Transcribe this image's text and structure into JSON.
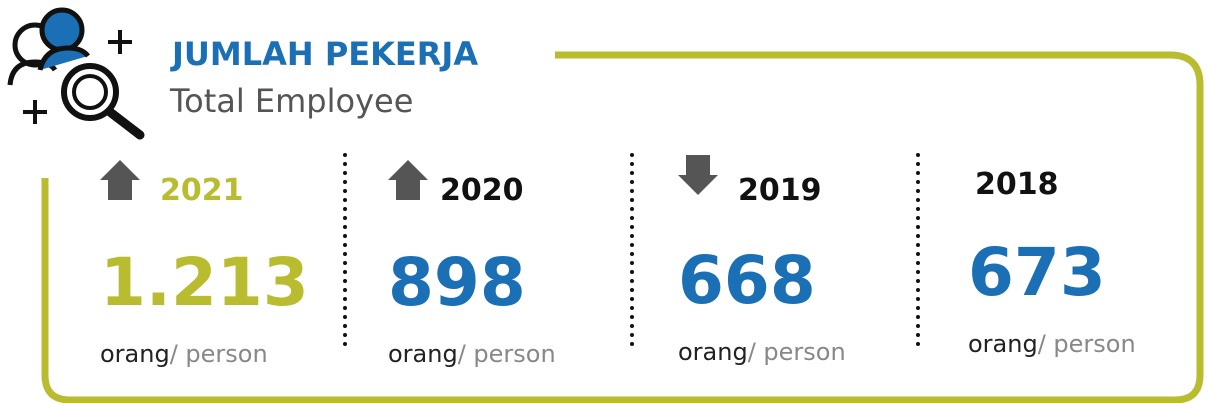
{
  "header": {
    "title": "JUMLAH PEKERJA",
    "subtitle": "Total Employee"
  },
  "items": [
    {
      "year": "2021",
      "value": "1.213",
      "unit": "orang",
      "unit_en": "/ person",
      "trend": "up",
      "color": "#b8bc2e",
      "year_color": "#b8bc2e"
    },
    {
      "year": "2020",
      "value": "898",
      "unit": "orang",
      "unit_en": "/ person",
      "trend": "up",
      "color": "#1a6fb5",
      "year_color": "#111111"
    },
    {
      "year": "2019",
      "value": "668",
      "unit": "orang",
      "unit_en": "/ person",
      "trend": "down",
      "color": "#1a6fb5",
      "year_color": "#111111"
    },
    {
      "year": "2018",
      "value": "673",
      "unit": "orang",
      "unit_en": "/ person",
      "color": "#1a6fb5",
      "year_color": "#111111"
    }
  ]
}
